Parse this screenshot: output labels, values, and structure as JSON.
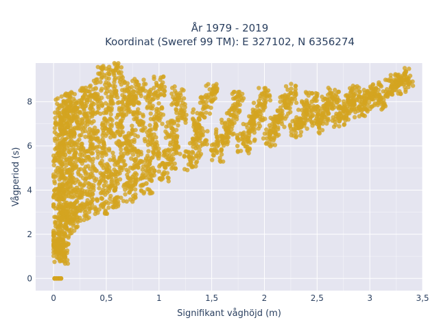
{
  "chart_data": {
    "type": "scatter",
    "title_lines": [
      "År 1979 - 2019",
      "Koordinat (Sweref 99 TM): E 327102, N 6356274"
    ],
    "xlabel": "Signifikant våghöjd (m)",
    "ylabel": "Vågperiod (s)",
    "xlim": [
      -0.17,
      3.5
    ],
    "ylim": [
      -0.55,
      9.75
    ],
    "x_ticks": [
      0,
      0.5,
      1,
      1.5,
      2,
      2.5,
      3,
      3.5
    ],
    "x_tick_labels": [
      "0",
      "0,5",
      "1",
      "1,5",
      "2",
      "2,5",
      "3",
      "3,5"
    ],
    "y_ticks": [
      0,
      2,
      4,
      6,
      8
    ],
    "y_tick_labels": [
      "0",
      "2",
      "4",
      "6",
      "8"
    ],
    "grid": true,
    "marker_color": "#D4A420",
    "plot_background": "#E5E5F0",
    "series": [
      {
        "points": [
          [
            0.01,
            0.0
          ],
          [
            0.03,
            0.0
          ],
          [
            0.05,
            0.0
          ],
          [
            0.07,
            0.0
          ],
          [
            0.02,
            1.7
          ],
          [
            0.04,
            1.4
          ],
          [
            0.06,
            1.2
          ],
          [
            0.08,
            1.1
          ],
          [
            0.05,
            2.4
          ],
          [
            0.07,
            3.0
          ],
          [
            0.03,
            3.6
          ],
          [
            0.06,
            4.2
          ],
          [
            0.04,
            5.0
          ],
          [
            0.05,
            5.8
          ],
          [
            0.06,
            6.5
          ],
          [
            0.07,
            7.2
          ],
          [
            0.08,
            7.8
          ],
          [
            0.1,
            2.0
          ],
          [
            0.12,
            2.5
          ],
          [
            0.14,
            3.2
          ],
          [
            0.1,
            4.0
          ],
          [
            0.13,
            4.8
          ],
          [
            0.11,
            5.6
          ],
          [
            0.14,
            6.4
          ],
          [
            0.12,
            7.0
          ],
          [
            0.15,
            7.6
          ],
          [
            0.16,
            8.0
          ],
          [
            0.18,
            2.6
          ],
          [
            0.2,
            3.4
          ],
          [
            0.22,
            4.1
          ],
          [
            0.2,
            5.0
          ],
          [
            0.24,
            5.9
          ],
          [
            0.22,
            6.8
          ],
          [
            0.25,
            7.5
          ],
          [
            0.28,
            8.2
          ],
          [
            0.3,
            3.0
          ],
          [
            0.32,
            3.8
          ],
          [
            0.35,
            4.6
          ],
          [
            0.33,
            5.5
          ],
          [
            0.36,
            6.3
          ],
          [
            0.34,
            7.1
          ],
          [
            0.38,
            7.9
          ],
          [
            0.4,
            8.6
          ],
          [
            0.45,
            3.3
          ],
          [
            0.48,
            4.2
          ],
          [
            0.5,
            5.0
          ],
          [
            0.47,
            5.9
          ],
          [
            0.52,
            6.7
          ],
          [
            0.5,
            7.5
          ],
          [
            0.55,
            8.3
          ],
          [
            0.48,
            9.2
          ],
          [
            0.58,
            3.6
          ],
          [
            0.6,
            4.4
          ],
          [
            0.62,
            5.3
          ],
          [
            0.65,
            6.1
          ],
          [
            0.6,
            7.0
          ],
          [
            0.66,
            7.8
          ],
          [
            0.7,
            8.5
          ],
          [
            0.62,
            9.3
          ],
          [
            0.72,
            3.9
          ],
          [
            0.75,
            4.6
          ],
          [
            0.78,
            5.4
          ],
          [
            0.74,
            6.2
          ],
          [
            0.8,
            7.1
          ],
          [
            0.76,
            7.9
          ],
          [
            0.82,
            8.6
          ],
          [
            0.88,
            4.3
          ],
          [
            0.9,
            5.0
          ],
          [
            0.95,
            5.7
          ],
          [
            0.92,
            6.5
          ],
          [
            0.98,
            7.3
          ],
          [
            0.94,
            8.1
          ],
          [
            1.0,
            8.7
          ],
          [
            1.05,
            4.8
          ],
          [
            1.1,
            5.4
          ],
          [
            1.15,
            6.0
          ],
          [
            1.12,
            6.8
          ],
          [
            1.2,
            7.5
          ],
          [
            1.18,
            8.3
          ],
          [
            1.3,
            5.3
          ],
          [
            1.35,
            5.9
          ],
          [
            1.4,
            6.5
          ],
          [
            1.38,
            7.2
          ],
          [
            1.45,
            7.8
          ],
          [
            1.5,
            8.4
          ],
          [
            1.55,
            5.7
          ],
          [
            1.6,
            6.3
          ],
          [
            1.65,
            6.8
          ],
          [
            1.7,
            7.4
          ],
          [
            1.75,
            8.0
          ],
          [
            1.8,
            6.1
          ],
          [
            1.85,
            6.6
          ],
          [
            1.9,
            7.1
          ],
          [
            1.95,
            7.6
          ],
          [
            2.0,
            8.2
          ],
          [
            2.05,
            6.4
          ],
          [
            2.1,
            6.9
          ],
          [
            2.15,
            7.3
          ],
          [
            2.2,
            7.8
          ],
          [
            2.25,
            8.4
          ],
          [
            2.3,
            6.8
          ],
          [
            2.35,
            7.2
          ],
          [
            2.4,
            7.6
          ],
          [
            2.45,
            8.0
          ],
          [
            2.5,
            7.0
          ],
          [
            2.55,
            7.4
          ],
          [
            2.6,
            7.8
          ],
          [
            2.65,
            8.2
          ],
          [
            2.7,
            7.3
          ],
          [
            2.75,
            7.6
          ],
          [
            2.8,
            8.0
          ],
          [
            2.85,
            8.3
          ],
          [
            2.9,
            7.7
          ],
          [
            2.95,
            8.0
          ],
          [
            3.0,
            8.2
          ],
          [
            3.05,
            8.5
          ],
          [
            3.1,
            8.1
          ],
          [
            3.2,
            8.6
          ],
          [
            3.25,
            8.8
          ],
          [
            3.3,
            8.8
          ],
          [
            3.35,
            9.1
          ]
        ]
      }
    ]
  }
}
